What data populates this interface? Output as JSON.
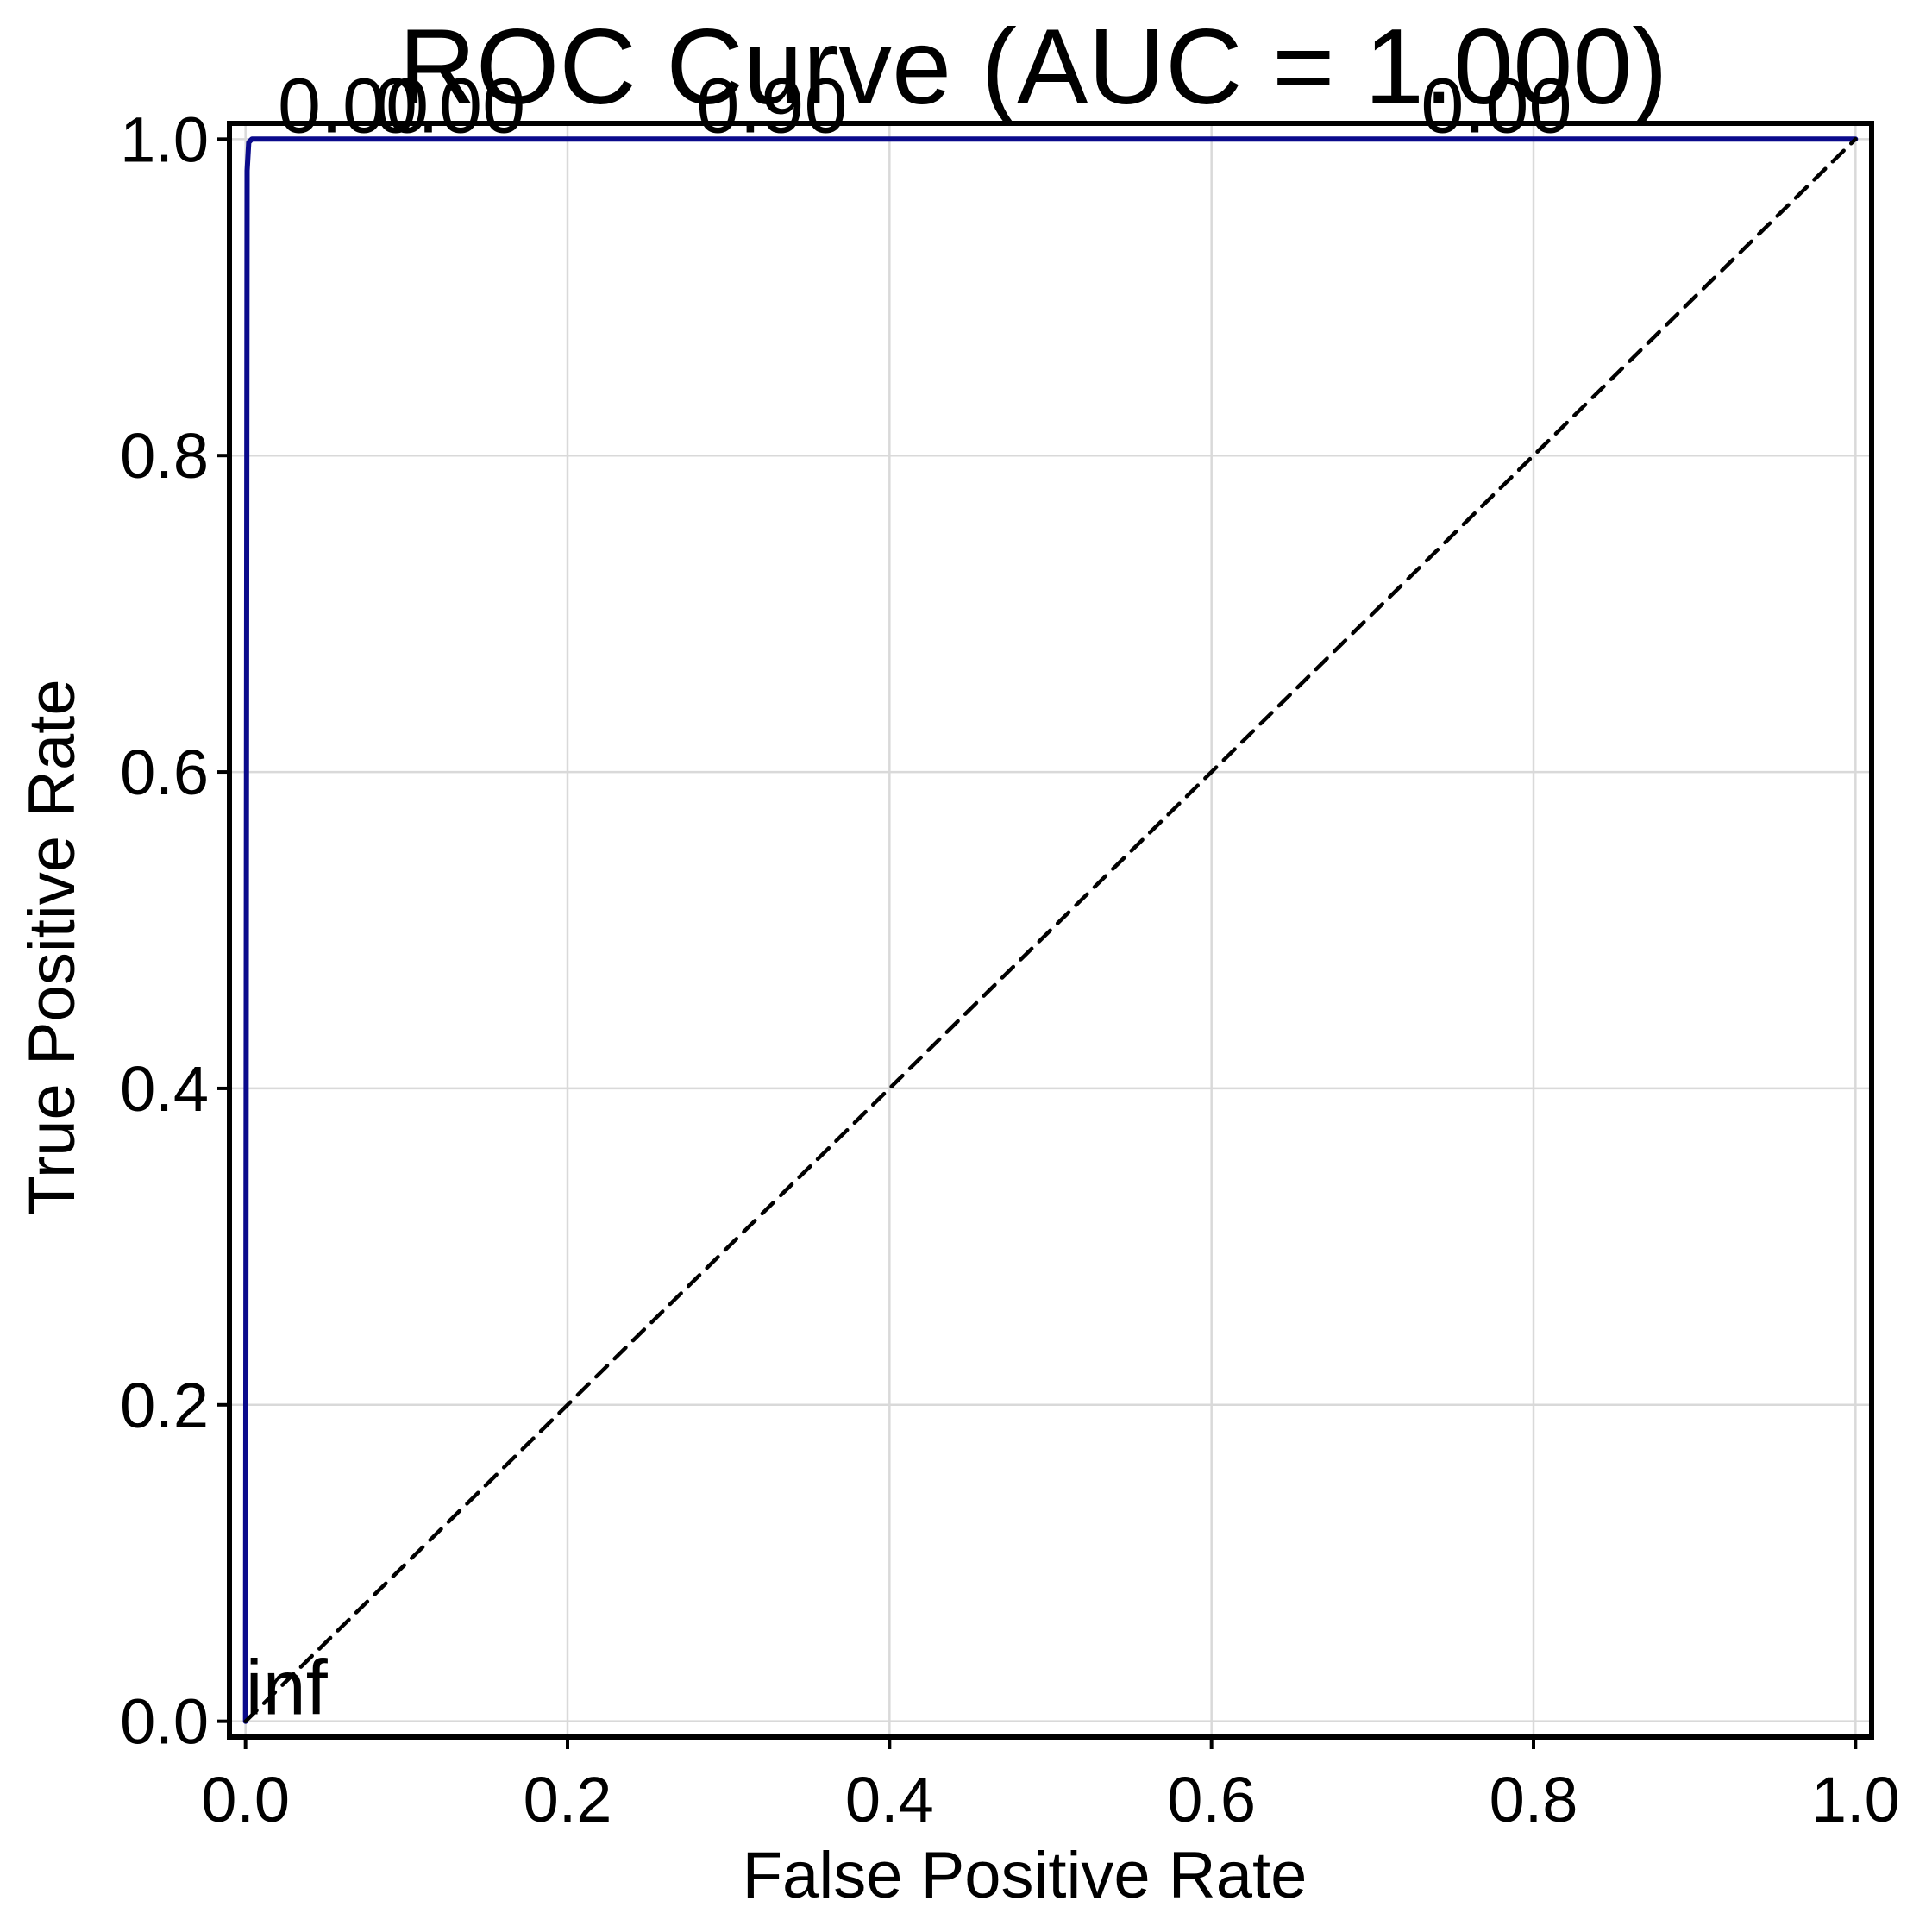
{
  "chart_data": {
    "type": "line",
    "title": "ROC Curve (AUC = 1.000)",
    "xlabel": "False Positive Rate",
    "ylabel": "True Positive Rate",
    "xlim": [
      -0.01,
      1.01
    ],
    "ylim": [
      -0.01,
      1.01
    ],
    "xticks": [
      0.0,
      0.2,
      0.4,
      0.6,
      0.8,
      1.0
    ],
    "yticks": [
      0.0,
      0.2,
      0.4,
      0.6,
      0.8,
      1.0
    ],
    "xtick_labels": [
      "0.0",
      "0.2",
      "0.4",
      "0.6",
      "0.8",
      "1.0"
    ],
    "ytick_labels": [
      "0.0",
      "0.2",
      "0.4",
      "0.6",
      "0.8",
      "1.0"
    ],
    "grid": true,
    "series": [
      {
        "color": "#0a0a8c",
        "style": "solid",
        "x": [
          0.0,
          0.0,
          0.001,
          0.002,
          0.004,
          1.0
        ],
        "y": [
          0.0,
          0.05,
          0.98,
          0.998,
          1.0,
          1.0
        ]
      },
      {
        "color": "#000000",
        "style": "dashed",
        "x": [
          0.0,
          1.0
        ],
        "y": [
          0.0,
          1.0
        ]
      }
    ],
    "annotations": [
      {
        "text": "inf",
        "x": 0.0,
        "y": 0.0
      },
      {
        "text": "0.00",
        "x": 0.02,
        "y": 1.0
      },
      {
        "text": "0.00",
        "x": 0.08,
        "y": 1.0
      },
      {
        "text": "0.90",
        "x": 0.28,
        "y": 1.0
      },
      {
        "text": "0.00",
        "x": 0.73,
        "y": 1.0
      }
    ]
  }
}
